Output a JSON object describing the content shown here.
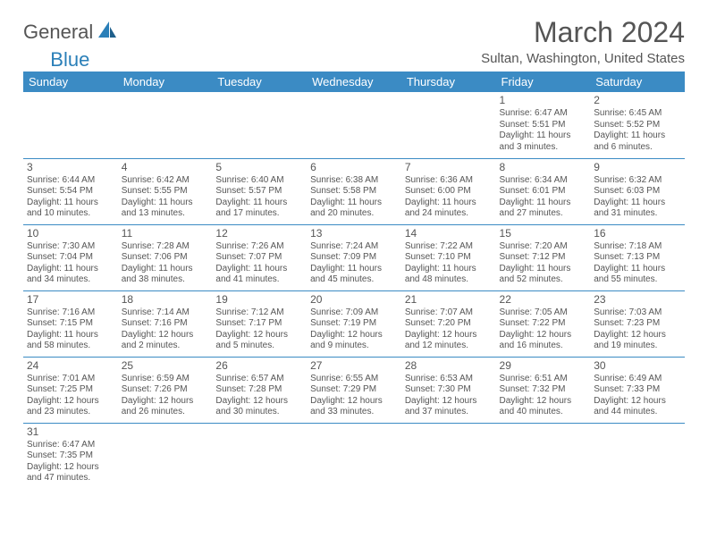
{
  "logo": {
    "text_a": "General",
    "text_b": "Blue"
  },
  "title": "March 2024",
  "subtitle": "Sultan, Washington, United States",
  "colors": {
    "header_bg": "#3b8bc4",
    "header_fg": "#ffffff",
    "text": "#555555",
    "rule": "#3b8bc4",
    "accent": "#2a7fb8"
  },
  "fonts": {
    "title_size": 32,
    "subtitle_size": 15,
    "dayhead_size": 13,
    "cell_size": 10,
    "logo_size": 22
  },
  "day_headers": [
    "Sunday",
    "Monday",
    "Tuesday",
    "Wednesday",
    "Thursday",
    "Friday",
    "Saturday"
  ],
  "weeks": [
    [
      null,
      null,
      null,
      null,
      null,
      {
        "n": "1",
        "sr": "Sunrise: 6:47 AM",
        "ss": "Sunset: 5:51 PM",
        "dl1": "Daylight: 11 hours",
        "dl2": "and 3 minutes."
      },
      {
        "n": "2",
        "sr": "Sunrise: 6:45 AM",
        "ss": "Sunset: 5:52 PM",
        "dl1": "Daylight: 11 hours",
        "dl2": "and 6 minutes."
      }
    ],
    [
      {
        "n": "3",
        "sr": "Sunrise: 6:44 AM",
        "ss": "Sunset: 5:54 PM",
        "dl1": "Daylight: 11 hours",
        "dl2": "and 10 minutes."
      },
      {
        "n": "4",
        "sr": "Sunrise: 6:42 AM",
        "ss": "Sunset: 5:55 PM",
        "dl1": "Daylight: 11 hours",
        "dl2": "and 13 minutes."
      },
      {
        "n": "5",
        "sr": "Sunrise: 6:40 AM",
        "ss": "Sunset: 5:57 PM",
        "dl1": "Daylight: 11 hours",
        "dl2": "and 17 minutes."
      },
      {
        "n": "6",
        "sr": "Sunrise: 6:38 AM",
        "ss": "Sunset: 5:58 PM",
        "dl1": "Daylight: 11 hours",
        "dl2": "and 20 minutes."
      },
      {
        "n": "7",
        "sr": "Sunrise: 6:36 AM",
        "ss": "Sunset: 6:00 PM",
        "dl1": "Daylight: 11 hours",
        "dl2": "and 24 minutes."
      },
      {
        "n": "8",
        "sr": "Sunrise: 6:34 AM",
        "ss": "Sunset: 6:01 PM",
        "dl1": "Daylight: 11 hours",
        "dl2": "and 27 minutes."
      },
      {
        "n": "9",
        "sr": "Sunrise: 6:32 AM",
        "ss": "Sunset: 6:03 PM",
        "dl1": "Daylight: 11 hours",
        "dl2": "and 31 minutes."
      }
    ],
    [
      {
        "n": "10",
        "sr": "Sunrise: 7:30 AM",
        "ss": "Sunset: 7:04 PM",
        "dl1": "Daylight: 11 hours",
        "dl2": "and 34 minutes."
      },
      {
        "n": "11",
        "sr": "Sunrise: 7:28 AM",
        "ss": "Sunset: 7:06 PM",
        "dl1": "Daylight: 11 hours",
        "dl2": "and 38 minutes."
      },
      {
        "n": "12",
        "sr": "Sunrise: 7:26 AM",
        "ss": "Sunset: 7:07 PM",
        "dl1": "Daylight: 11 hours",
        "dl2": "and 41 minutes."
      },
      {
        "n": "13",
        "sr": "Sunrise: 7:24 AM",
        "ss": "Sunset: 7:09 PM",
        "dl1": "Daylight: 11 hours",
        "dl2": "and 45 minutes."
      },
      {
        "n": "14",
        "sr": "Sunrise: 7:22 AM",
        "ss": "Sunset: 7:10 PM",
        "dl1": "Daylight: 11 hours",
        "dl2": "and 48 minutes."
      },
      {
        "n": "15",
        "sr": "Sunrise: 7:20 AM",
        "ss": "Sunset: 7:12 PM",
        "dl1": "Daylight: 11 hours",
        "dl2": "and 52 minutes."
      },
      {
        "n": "16",
        "sr": "Sunrise: 7:18 AM",
        "ss": "Sunset: 7:13 PM",
        "dl1": "Daylight: 11 hours",
        "dl2": "and 55 minutes."
      }
    ],
    [
      {
        "n": "17",
        "sr": "Sunrise: 7:16 AM",
        "ss": "Sunset: 7:15 PM",
        "dl1": "Daylight: 11 hours",
        "dl2": "and 58 minutes."
      },
      {
        "n": "18",
        "sr": "Sunrise: 7:14 AM",
        "ss": "Sunset: 7:16 PM",
        "dl1": "Daylight: 12 hours",
        "dl2": "and 2 minutes."
      },
      {
        "n": "19",
        "sr": "Sunrise: 7:12 AM",
        "ss": "Sunset: 7:17 PM",
        "dl1": "Daylight: 12 hours",
        "dl2": "and 5 minutes."
      },
      {
        "n": "20",
        "sr": "Sunrise: 7:09 AM",
        "ss": "Sunset: 7:19 PM",
        "dl1": "Daylight: 12 hours",
        "dl2": "and 9 minutes."
      },
      {
        "n": "21",
        "sr": "Sunrise: 7:07 AM",
        "ss": "Sunset: 7:20 PM",
        "dl1": "Daylight: 12 hours",
        "dl2": "and 12 minutes."
      },
      {
        "n": "22",
        "sr": "Sunrise: 7:05 AM",
        "ss": "Sunset: 7:22 PM",
        "dl1": "Daylight: 12 hours",
        "dl2": "and 16 minutes."
      },
      {
        "n": "23",
        "sr": "Sunrise: 7:03 AM",
        "ss": "Sunset: 7:23 PM",
        "dl1": "Daylight: 12 hours",
        "dl2": "and 19 minutes."
      }
    ],
    [
      {
        "n": "24",
        "sr": "Sunrise: 7:01 AM",
        "ss": "Sunset: 7:25 PM",
        "dl1": "Daylight: 12 hours",
        "dl2": "and 23 minutes."
      },
      {
        "n": "25",
        "sr": "Sunrise: 6:59 AM",
        "ss": "Sunset: 7:26 PM",
        "dl1": "Daylight: 12 hours",
        "dl2": "and 26 minutes."
      },
      {
        "n": "26",
        "sr": "Sunrise: 6:57 AM",
        "ss": "Sunset: 7:28 PM",
        "dl1": "Daylight: 12 hours",
        "dl2": "and 30 minutes."
      },
      {
        "n": "27",
        "sr": "Sunrise: 6:55 AM",
        "ss": "Sunset: 7:29 PM",
        "dl1": "Daylight: 12 hours",
        "dl2": "and 33 minutes."
      },
      {
        "n": "28",
        "sr": "Sunrise: 6:53 AM",
        "ss": "Sunset: 7:30 PM",
        "dl1": "Daylight: 12 hours",
        "dl2": "and 37 minutes."
      },
      {
        "n": "29",
        "sr": "Sunrise: 6:51 AM",
        "ss": "Sunset: 7:32 PM",
        "dl1": "Daylight: 12 hours",
        "dl2": "and 40 minutes."
      },
      {
        "n": "30",
        "sr": "Sunrise: 6:49 AM",
        "ss": "Sunset: 7:33 PM",
        "dl1": "Daylight: 12 hours",
        "dl2": "and 44 minutes."
      }
    ],
    [
      {
        "n": "31",
        "sr": "Sunrise: 6:47 AM",
        "ss": "Sunset: 7:35 PM",
        "dl1": "Daylight: 12 hours",
        "dl2": "and 47 minutes."
      },
      null,
      null,
      null,
      null,
      null,
      null
    ]
  ]
}
